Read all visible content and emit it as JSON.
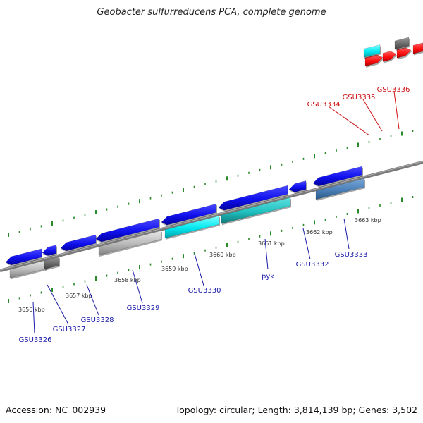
{
  "title": "Geobacter sulfurreducens PCA, complete genome",
  "footer": {
    "accession": "Accession: NC_002939",
    "summary": "Topology: circular; Length: 3,814,139 bp; Genes: 3,502"
  },
  "colors": {
    "forward_strand": "#1010ee",
    "cyan_gene": "#00e8f0",
    "teal_gene": "#20c8c8",
    "grey_gene": "#b8b8b8",
    "dark_grey_gene": "#707070",
    "steel_blue_gene": "#4a7fb8",
    "red_gene": "#ff1010",
    "tick_green": "#2a8a2a",
    "backbone": "#707070",
    "blue_label": "#1a1aa8",
    "red_label": "#cc1111"
  },
  "kbp_ticks": [
    "3656 kbp",
    "3657 kbp",
    "3658 kbp",
    "3659 kbp",
    "3660 kbp",
    "3661 kbp",
    "3662 kbp",
    "3663 kbp"
  ],
  "gene_labels": [
    {
      "text": "GSU3326",
      "color": "blue"
    },
    {
      "text": "GSU3327",
      "color": "blue"
    },
    {
      "text": "GSU3328",
      "color": "blue"
    },
    {
      "text": "GSU3329",
      "color": "blue"
    },
    {
      "text": "GSU3330",
      "color": "blue"
    },
    {
      "text": "pyk",
      "color": "blue"
    },
    {
      "text": "GSU3332",
      "color": "blue"
    },
    {
      "text": "GSU3333",
      "color": "blue"
    },
    {
      "text": "GSU3334",
      "color": "red"
    },
    {
      "text": "GSU3335",
      "color": "red"
    },
    {
      "text": "GSU3336",
      "color": "red"
    }
  ]
}
